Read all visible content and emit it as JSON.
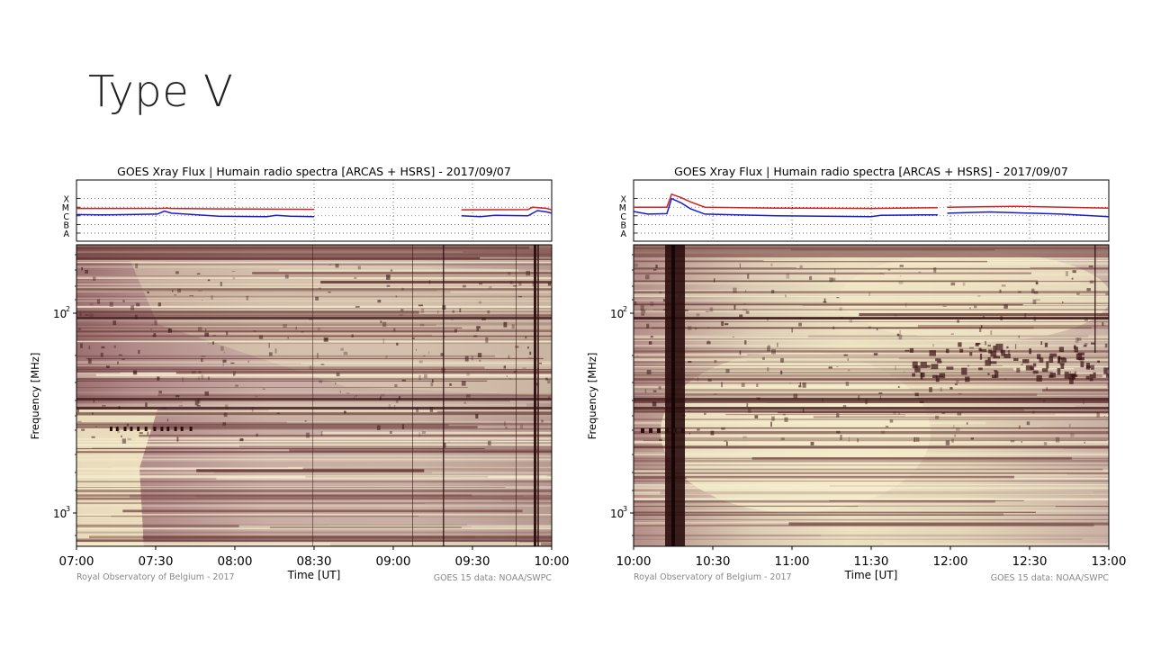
{
  "slide": {
    "title": "Type V"
  },
  "colors": {
    "red_channel": "#d42020",
    "blue_channel": "#1b1bcc",
    "spectrum_low": "#5a2a2a",
    "spectrum_high": "#f3e9c4"
  },
  "chart_data": [
    {
      "type": "line",
      "title": "GOES Xray Flux | Humain radio spectra [ARCAS + HSRS] - 2017/09/07",
      "xlabel": "Time [UT]",
      "ylabel": "Frequency [MHz]",
      "x_ticks": [
        "07:00",
        "07:30",
        "08:00",
        "08:30",
        "09:00",
        "09:30",
        "10:00"
      ],
      "flux_classes": [
        "X",
        "M",
        "C",
        "B",
        "A"
      ],
      "y_ticks": [
        "10",
        "10"
      ],
      "y_tick_exponents": [
        "2",
        "3"
      ],
      "credit_left": "Royal Observatory of Belgium - 2017",
      "credit_right": "GOES 15 data: NOAA/SWPC",
      "series": [
        {
          "channel": "red",
          "points": [
            [
              0,
              2.85
            ],
            [
              0.05,
              2.85
            ],
            [
              0.18,
              2.86
            ],
            [
              0.19,
              2.9
            ],
            [
              0.2,
              2.85
            ],
            [
              0.3,
              2.8
            ],
            [
              0.5,
              2.75
            ],
            [
              0.5,
              null
            ],
            [
              0.81,
              2.7
            ],
            [
              0.95,
              2.72
            ],
            [
              0.96,
              3.0
            ],
            [
              0.99,
              2.85
            ],
            [
              1,
              2.7
            ]
          ]
        },
        {
          "channel": "blue",
          "points": [
            [
              0,
              2.15
            ],
            [
              0.05,
              2.1
            ],
            [
              0.17,
              2.2
            ],
            [
              0.185,
              2.55
            ],
            [
              0.2,
              2.3
            ],
            [
              0.3,
              1.95
            ],
            [
              0.4,
              1.9
            ],
            [
              0.42,
              2.05
            ],
            [
              0.45,
              1.95
            ],
            [
              0.5,
              1.9
            ],
            [
              0.5,
              null
            ],
            [
              0.81,
              2.0
            ],
            [
              0.85,
              1.9
            ],
            [
              0.88,
              2.05
            ],
            [
              0.95,
              2.0
            ],
            [
              0.97,
              2.6
            ],
            [
              0.99,
              2.45
            ],
            [
              1,
              2.3
            ]
          ]
        }
      ]
    },
    {
      "type": "line",
      "title": "GOES Xray Flux | Humain radio spectra [ARCAS + HSRS] - 2017/09/07",
      "xlabel": "Time [UT]",
      "ylabel": "Frequency [MHz]",
      "x_ticks": [
        "10:00",
        "10:30",
        "11:00",
        "11:30",
        "12:00",
        "12:30",
        "13:00"
      ],
      "flux_classes": [
        "X",
        "M",
        "C",
        "B",
        "A"
      ],
      "y_ticks": [
        "10",
        "10"
      ],
      "y_tick_exponents": [
        "2",
        "3"
      ],
      "credit_left": "Royal Observatory of Belgium - 2017",
      "credit_right": "GOES 15 data: NOAA/SWPC",
      "series": [
        {
          "channel": "red",
          "points": [
            [
              0,
              3.0
            ],
            [
              0.07,
              3.0
            ],
            [
              0.08,
              4.5
            ],
            [
              0.1,
              4.1
            ],
            [
              0.12,
              3.6
            ],
            [
              0.15,
              3.0
            ],
            [
              0.3,
              2.9
            ],
            [
              0.5,
              2.85
            ],
            [
              0.64,
              2.95
            ],
            [
              0.65,
              null
            ],
            [
              0.66,
              3.0
            ],
            [
              0.8,
              3.1
            ],
            [
              1,
              2.9
            ]
          ]
        },
        {
          "channel": "blue",
          "points": [
            [
              0,
              2.5
            ],
            [
              0.03,
              2.2
            ],
            [
              0.07,
              2.25
            ],
            [
              0.08,
              4.0
            ],
            [
              0.1,
              3.5
            ],
            [
              0.12,
              2.8
            ],
            [
              0.15,
              2.2
            ],
            [
              0.3,
              2.0
            ],
            [
              0.5,
              1.9
            ],
            [
              0.52,
              2.05
            ],
            [
              0.6,
              2.1
            ],
            [
              0.64,
              2.1
            ],
            [
              0.65,
              null
            ],
            [
              0.66,
              2.3
            ],
            [
              0.75,
              2.45
            ],
            [
              0.9,
              2.2
            ],
            [
              1,
              1.9
            ]
          ]
        }
      ]
    }
  ]
}
